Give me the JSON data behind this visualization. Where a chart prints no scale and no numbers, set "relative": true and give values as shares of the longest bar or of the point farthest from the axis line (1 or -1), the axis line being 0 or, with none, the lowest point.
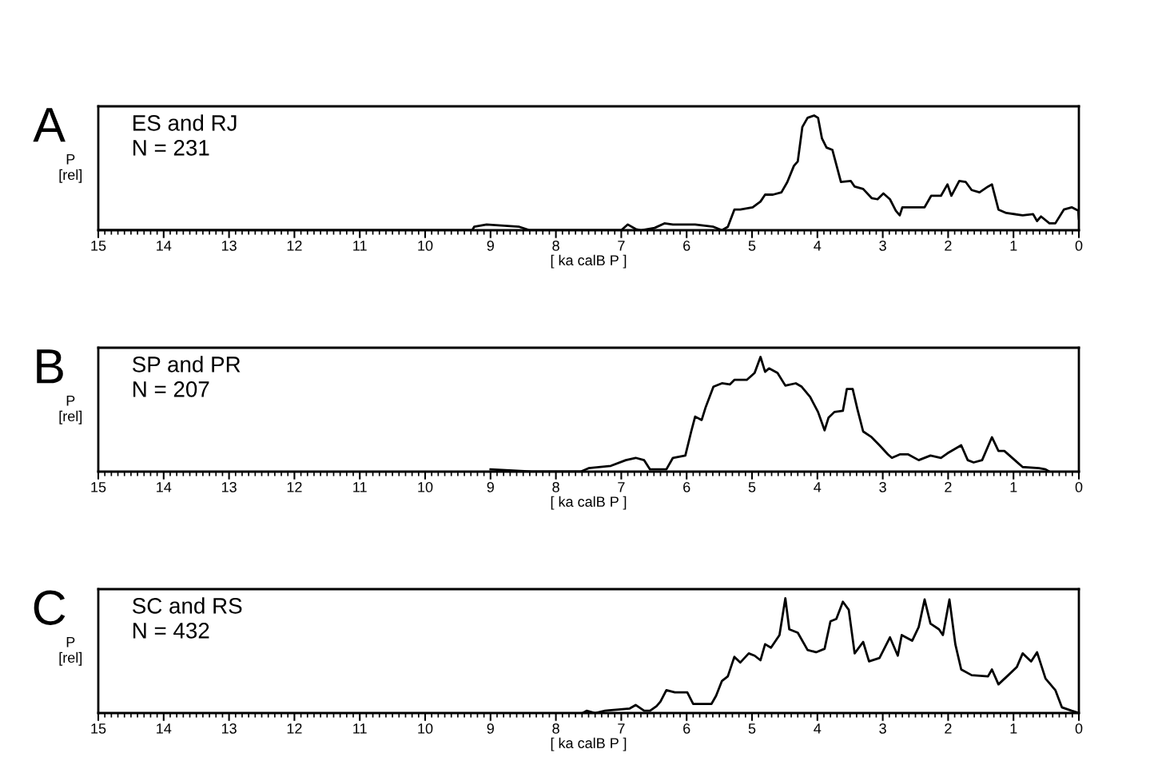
{
  "chart_data": [
    {
      "type": "line",
      "title": "A",
      "ylabel": "P\n[rel]",
      "xlabel": "[ ka calB P ]",
      "relative": true,
      "annotations": [
        "ES and RJ",
        "N = 231"
      ],
      "xlim": [
        15,
        0
      ],
      "xticks": [
        15,
        14,
        13,
        12,
        11,
        10,
        9,
        8,
        7,
        6,
        5,
        4,
        3,
        2,
        1,
        0
      ],
      "series": [
        {
          "color": "#000000",
          "x": [
            15,
            9.28,
            9.25,
            9.06,
            8.56,
            8.4,
            7.0,
            6.9,
            6.78,
            6.7,
            6.49,
            6.34,
            6.21,
            5.87,
            5.59,
            5.46,
            5.37,
            5.27,
            5.18,
            4.99,
            4.87,
            4.8,
            4.68,
            4.55,
            4.46,
            4.36,
            4.3,
            4.23,
            4.15,
            4.05,
            3.99,
            3.93,
            3.86,
            3.77,
            3.7,
            3.64,
            3.49,
            3.43,
            3.3,
            3.17,
            3.08,
            2.99,
            2.89,
            2.8,
            2.74,
            2.7,
            2.36,
            2.26,
            2.11,
            2.01,
            1.95,
            1.83,
            1.73,
            1.64,
            1.52,
            1.39,
            1.33,
            1.23,
            1.11,
            0.86,
            0.7,
            0.64,
            0.58,
            0.45,
            0.36,
            0.23,
            0.11,
            0.01,
            0
          ],
          "values": [
            0,
            0,
            0.03,
            0.05,
            0.03,
            0,
            0,
            0.05,
            0.01,
            0,
            0.02,
            0.06,
            0.05,
            0.05,
            0.03,
            0,
            0.03,
            0.18,
            0.18,
            0.2,
            0.25,
            0.31,
            0.31,
            0.33,
            0.42,
            0.56,
            0.6,
            0.9,
            0.98,
            1.0,
            0.98,
            0.8,
            0.72,
            0.7,
            0.55,
            0.42,
            0.43,
            0.38,
            0.36,
            0.28,
            0.27,
            0.32,
            0.27,
            0.17,
            0.13,
            0.2,
            0.2,
            0.3,
            0.3,
            0.4,
            0.3,
            0.43,
            0.42,
            0.35,
            0.33,
            0.38,
            0.4,
            0.18,
            0.15,
            0.13,
            0.14,
            0.08,
            0.12,
            0.06,
            0.06,
            0.18,
            0.2,
            0.17,
            0.1
          ]
        }
      ]
    },
    {
      "type": "line",
      "title": "B",
      "ylabel": "P\n[rel]",
      "xlabel": "[ ka calB P ]",
      "relative": true,
      "annotations": [
        "SP and PR",
        "N = 207"
      ],
      "xlim": [
        15,
        0
      ],
      "xticks": [
        15,
        14,
        13,
        12,
        11,
        10,
        9,
        8,
        7,
        6,
        5,
        4,
        3,
        2,
        1,
        0
      ],
      "series": [
        {
          "color": "#000000",
          "x": [
            9.0,
            8.37,
            7.62,
            7.5,
            7.16,
            6.93,
            6.78,
            6.65,
            6.56,
            6.31,
            6.21,
            6.02,
            5.93,
            5.87,
            5.77,
            5.71,
            5.59,
            5.46,
            5.34,
            5.27,
            5.08,
            4.96,
            4.87,
            4.8,
            4.74,
            4.61,
            4.49,
            4.33,
            4.24,
            4.11,
            3.99,
            3.89,
            3.83,
            3.74,
            3.61,
            3.55,
            3.46,
            3.39,
            3.3,
            3.17,
            3.05,
            2.92,
            2.86,
            2.74,
            2.61,
            2.45,
            2.27,
            2.11,
            2.01,
            1.8,
            1.7,
            1.61,
            1.48,
            1.33,
            1.23,
            1.14,
            0.98,
            0.86,
            0.61,
            0.51,
            0.45
          ],
          "values": [
            0.02,
            0,
            0,
            0.03,
            0.05,
            0.1,
            0.12,
            0.1,
            0.02,
            0.02,
            0.12,
            0.14,
            0.35,
            0.48,
            0.45,
            0.56,
            0.74,
            0.77,
            0.76,
            0.8,
            0.8,
            0.86,
            1.0,
            0.87,
            0.9,
            0.86,
            0.75,
            0.77,
            0.74,
            0.65,
            0.52,
            0.36,
            0.47,
            0.52,
            0.53,
            0.72,
            0.72,
            0.55,
            0.35,
            0.3,
            0.23,
            0.15,
            0.12,
            0.15,
            0.15,
            0.1,
            0.14,
            0.12,
            0.16,
            0.23,
            0.1,
            0.08,
            0.1,
            0.3,
            0.18,
            0.18,
            0.1,
            0.04,
            0.03,
            0.02,
            0
          ]
        }
      ]
    },
    {
      "type": "line",
      "title": "C",
      "ylabel": "P\n[rel]",
      "xlabel": "[ ka calB P ]",
      "relative": true,
      "annotations": [
        "SC and RS",
        "N = 432"
      ],
      "xlim": [
        15,
        0
      ],
      "xticks": [
        15,
        14,
        13,
        12,
        11,
        10,
        9,
        8,
        7,
        6,
        5,
        4,
        3,
        2,
        1,
        0
      ],
      "series": [
        {
          "color": "#000000",
          "x": [
            7.59,
            7.53,
            7.4,
            7.25,
            6.87,
            6.78,
            6.65,
            6.56,
            6.46,
            6.4,
            6.31,
            6.18,
            5.99,
            5.9,
            5.62,
            5.55,
            5.46,
            5.37,
            5.27,
            5.18,
            5.05,
            4.96,
            4.87,
            4.8,
            4.71,
            4.58,
            4.49,
            4.43,
            4.3,
            4.15,
            4.02,
            3.89,
            3.8,
            3.71,
            3.61,
            3.52,
            3.43,
            3.3,
            3.21,
            3.05,
            2.89,
            2.77,
            2.71,
            2.55,
            2.45,
            2.36,
            2.27,
            2.14,
            2.08,
            1.98,
            1.89,
            1.8,
            1.64,
            1.39,
            1.33,
            1.23,
            1.08,
            0.95,
            0.86,
            0.73,
            0.64,
            0.51,
            0.36,
            0.26,
            0.11,
            0
          ],
          "values": [
            0,
            0.02,
            0,
            0.02,
            0.04,
            0.07,
            0.02,
            0.02,
            0.06,
            0.1,
            0.2,
            0.18,
            0.18,
            0.08,
            0.08,
            0.15,
            0.28,
            0.32,
            0.49,
            0.44,
            0.52,
            0.5,
            0.46,
            0.6,
            0.57,
            0.68,
            1.0,
            0.73,
            0.7,
            0.55,
            0.53,
            0.56,
            0.8,
            0.82,
            0.97,
            0.9,
            0.52,
            0.62,
            0.45,
            0.48,
            0.66,
            0.5,
            0.68,
            0.63,
            0.75,
            0.99,
            0.78,
            0.73,
            0.68,
            0.99,
            0.6,
            0.38,
            0.33,
            0.32,
            0.38,
            0.25,
            0.33,
            0.4,
            0.52,
            0.45,
            0.53,
            0.3,
            0.2,
            0.05,
            0.02,
            0
          ]
        }
      ]
    }
  ]
}
